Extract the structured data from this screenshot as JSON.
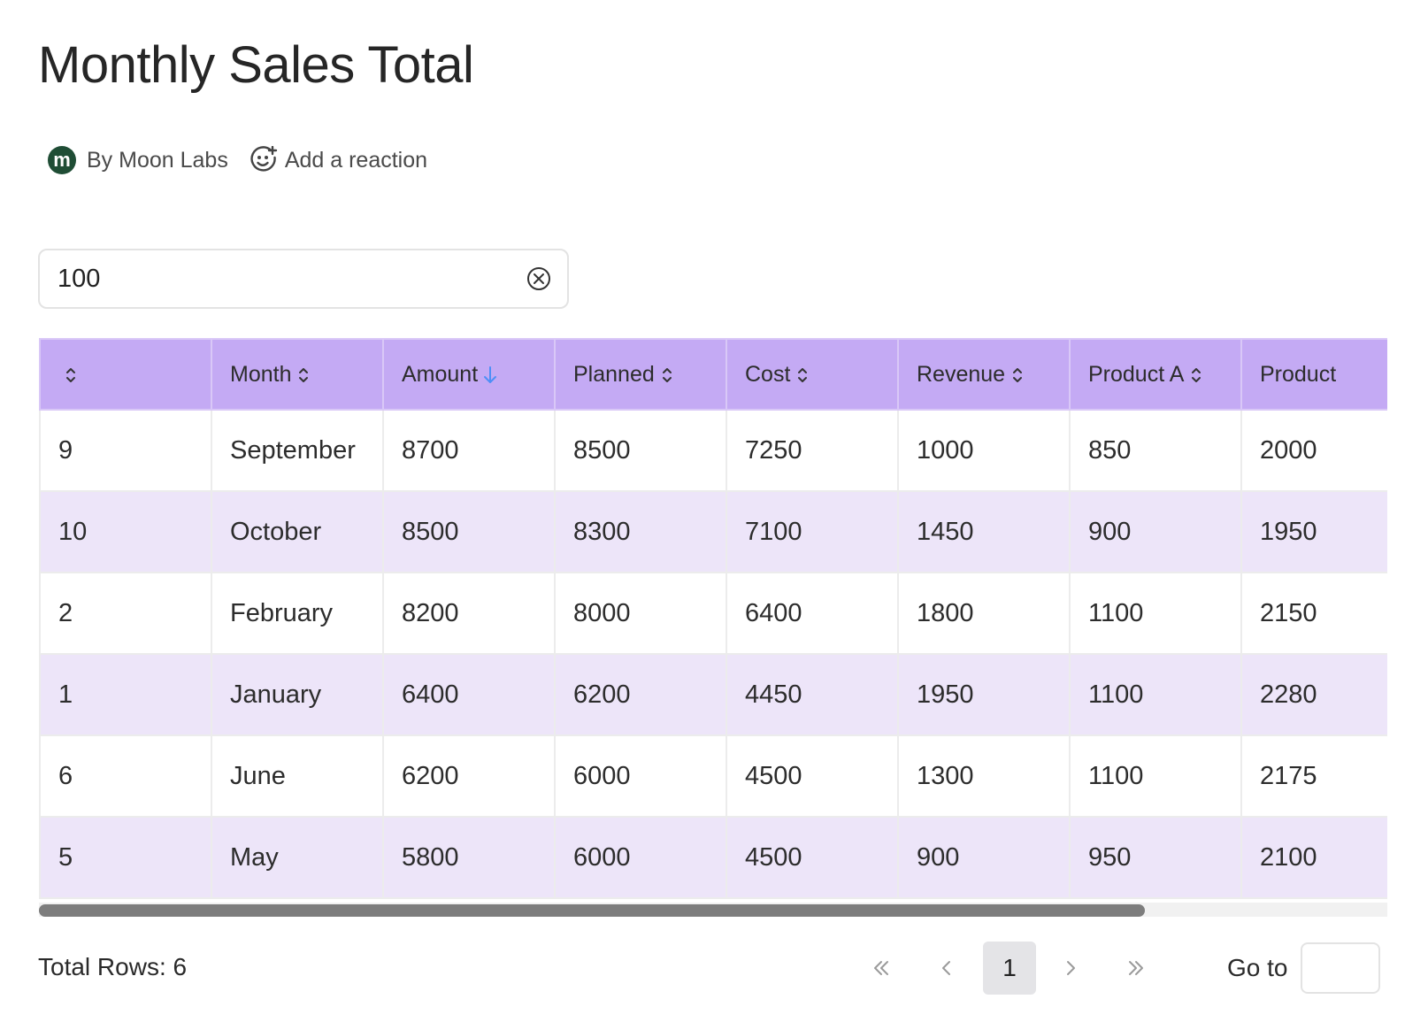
{
  "page": {
    "title": "Monthly Sales Total",
    "author": "By Moon Labs",
    "avatar_letter": "m",
    "reaction_label": "Add a reaction",
    "avatar_color": "#1f4d35"
  },
  "search": {
    "value": "100",
    "placeholder": ""
  },
  "table": {
    "header_color": "#c4aaf4",
    "alt_row_color": "#ede5f9",
    "sort_active_color": "#4d8ff7",
    "columns": [
      {
        "label": "",
        "sort": "none"
      },
      {
        "label": "Month",
        "sort": "none"
      },
      {
        "label": "Amount",
        "sort": "desc"
      },
      {
        "label": "Planned",
        "sort": "none"
      },
      {
        "label": "Cost",
        "sort": "none"
      },
      {
        "label": "Revenue",
        "sort": "none"
      },
      {
        "label": "Product A",
        "sort": "none"
      },
      {
        "label": "Product",
        "sort": "none"
      }
    ],
    "rows": [
      [
        "9",
        "September",
        "8700",
        "8500",
        "7250",
        "1000",
        "850",
        "2000"
      ],
      [
        "10",
        "October",
        "8500",
        "8300",
        "7100",
        "1450",
        "900",
        "1950"
      ],
      [
        "2",
        "February",
        "8200",
        "8000",
        "6400",
        "1800",
        "1100",
        "2150"
      ],
      [
        "1",
        "January",
        "6400",
        "6200",
        "4450",
        "1950",
        "1100",
        "2280"
      ],
      [
        "6",
        "June",
        "6200",
        "6000",
        "4500",
        "1300",
        "1100",
        "2175"
      ],
      [
        "5",
        "May",
        "5800",
        "6000",
        "4500",
        "900",
        "950",
        "2100"
      ]
    ],
    "horizontal_scroll_fraction": 0.82
  },
  "footer": {
    "total_rows": "Total Rows: 6",
    "current_page": "1",
    "goto_label": "Go to",
    "goto_value": ""
  }
}
